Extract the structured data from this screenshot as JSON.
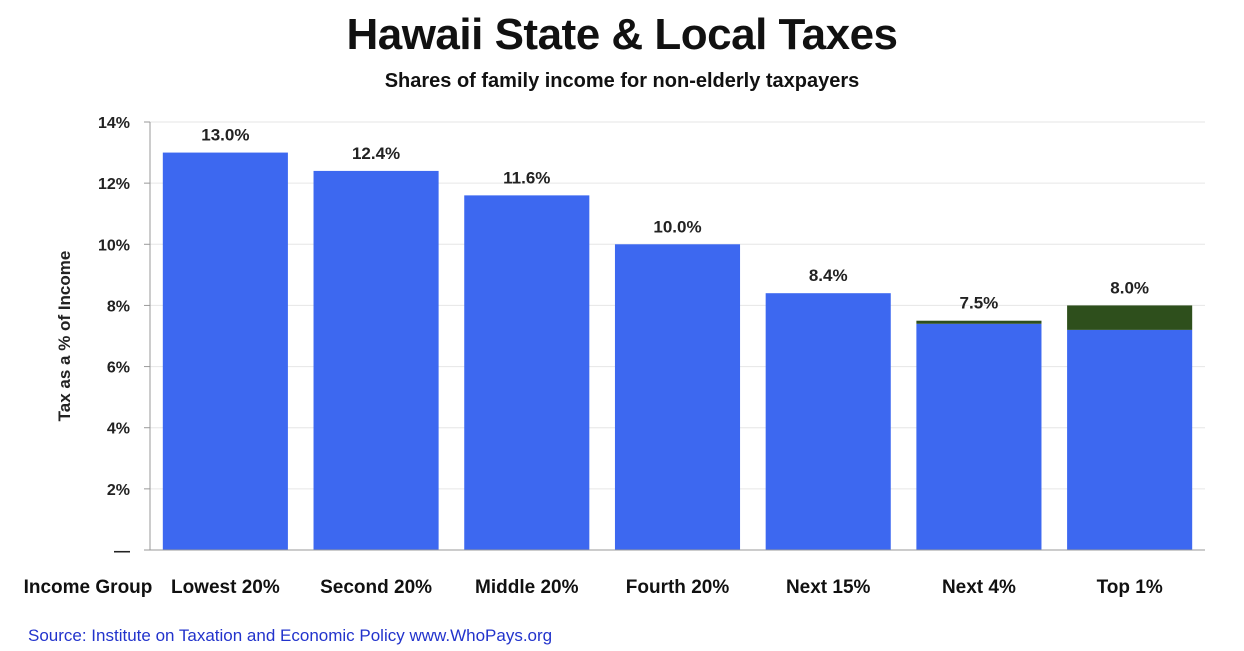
{
  "colors": {
    "bar": "#3d68f0",
    "top_segment": "#2e4f1c",
    "grid": "#e6e6e6",
    "source": "#2233cc"
  },
  "chart_data": {
    "type": "bar",
    "title": "Hawaii State & Local Taxes",
    "subtitle": "Shares of family income for non-elderly taxpayers",
    "ylabel": "Tax as a % of Income",
    "xlabel": "Income Group",
    "ylim": [
      0,
      14
    ],
    "yticks": [
      "—",
      "2%",
      "4%",
      "6%",
      "8%",
      "10%",
      "12%",
      "14%"
    ],
    "grid": true,
    "categories": [
      "Lowest 20%",
      "Second 20%",
      "Middle 20%",
      "Fourth 20%",
      "Next 15%",
      "Next 4%",
      "Top 1%"
    ],
    "values": [
      13.0,
      12.4,
      11.6,
      10.0,
      8.4,
      7.5,
      8.0
    ],
    "value_labels": [
      "13.0%",
      "12.4%",
      "11.6%",
      "10.0%",
      "8.4%",
      "7.5%",
      "8.0%"
    ],
    "dark_segment_base": [
      null,
      null,
      null,
      null,
      null,
      7.4,
      7.2
    ]
  },
  "source": "Source: Institute on Taxation and Economic Policy  www.WhoPays.org"
}
